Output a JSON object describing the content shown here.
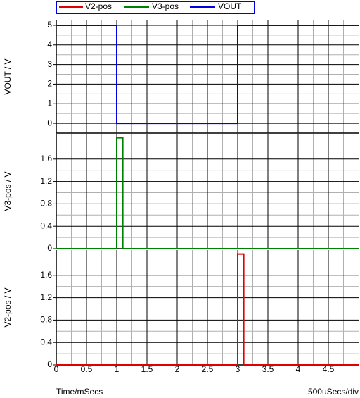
{
  "chart_data": [
    {
      "type": "line",
      "y_label": "VOUT / V",
      "xlim": [
        0,
        5
      ],
      "xticks": [
        0,
        0.5,
        1,
        1.5,
        2,
        2.5,
        3,
        3.5,
        4,
        4.5
      ],
      "ylim": [
        -0.5,
        5.25
      ],
      "yticks": [
        0,
        1,
        2,
        3,
        4,
        5
      ],
      "grid": true,
      "x": [
        0,
        1,
        1,
        3,
        3,
        5
      ],
      "series": [
        {
          "name": "VOUT",
          "color": "#0000e0",
          "values": [
            5,
            5,
            0,
            0,
            5,
            5
          ]
        }
      ]
    },
    {
      "type": "line",
      "y_label": "V3-pos / V",
      "xlim": [
        0,
        5
      ],
      "xticks": [
        0,
        0.5,
        1,
        1.5,
        2,
        2.5,
        3,
        3.5,
        4,
        4.5
      ],
      "ylim": [
        0,
        2.05
      ],
      "yticks": [
        0,
        0.4,
        0.8,
        1.2,
        1.6
      ],
      "grid": true,
      "x": [
        0,
        1,
        1,
        1.1,
        1.1,
        5
      ],
      "series": [
        {
          "name": "V3-pos",
          "color": "#008000",
          "values": [
            0,
            0,
            1.98,
            1.98,
            0,
            0
          ]
        }
      ]
    },
    {
      "type": "line",
      "y_label": "V2-pos / V",
      "x_label": "Time/mSecs",
      "annotation": "500uSecs/div",
      "xlim": [
        0,
        5
      ],
      "xticks": [
        0,
        0.5,
        1,
        1.5,
        2,
        2.5,
        3,
        3.5,
        4,
        4.5
      ],
      "ylim": [
        0,
        2.05
      ],
      "yticks": [
        0,
        0.4,
        0.8,
        1.2,
        1.6
      ],
      "grid": true,
      "x": [
        0,
        3,
        3,
        3.1,
        3.1,
        5
      ],
      "series": [
        {
          "name": "V2-pos",
          "color": "#e00000",
          "values": [
            0,
            0,
            1.98,
            1.98,
            0,
            0
          ]
        }
      ]
    }
  ]
}
